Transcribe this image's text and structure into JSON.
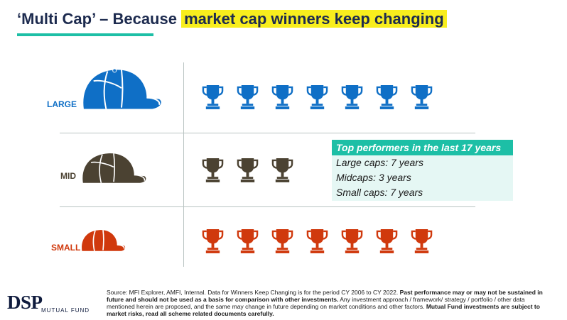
{
  "title": {
    "prefix": "‘Multi Cap’ – Because ",
    "highlight": "market cap winners keep changing",
    "accent_color": "#1dbfa6",
    "highlight_color": "#f8ee1d"
  },
  "rows": [
    {
      "label": "LARGE",
      "color": "#0f6fc6",
      "icon": "cap-icon",
      "trophy_icon": "trophy-icon",
      "trophy_count": 7
    },
    {
      "label": "MID",
      "color": "#4b4232",
      "icon": "cap-icon",
      "trophy_icon": "trophy-icon",
      "trophy_count": 3
    },
    {
      "label": "SMALL",
      "color": "#d0390d",
      "icon": "cap-icon",
      "trophy_icon": "trophy-icon",
      "trophy_count": 7
    }
  ],
  "callout": {
    "heading": "Top performers in the last 17 years",
    "lines": [
      "Large caps: 7 years",
      "Midcaps: 3 years",
      "Small caps: 7 years"
    ]
  },
  "logo": {
    "brand": "DSP",
    "subtitle": "MUTUAL FUND"
  },
  "source": {
    "part1": "Source: MFI Explorer, AMFI, Internal. Data for Winners Keep Changing is for the period CY 2006 to CY 2022. ",
    "bold1": "Past performance may or may not be sustained in future and should not be used as a basis for comparison with other investments.",
    "part2": " Any investment approach / framework/ strategy / portfolio / other data mentioned herein are proposed, and the same may change in future depending on market conditions and other factors. ",
    "bold2": "Mutual Fund investments are subject to market risks, read all scheme related documents carefully."
  }
}
